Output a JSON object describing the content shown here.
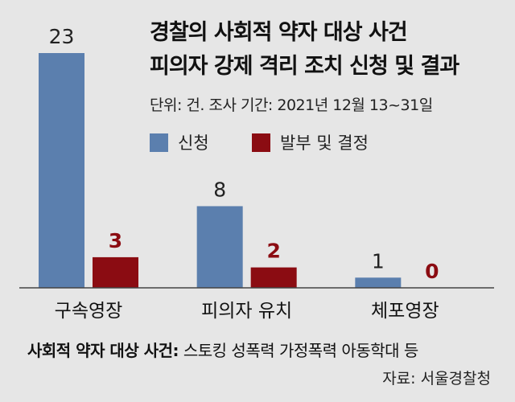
{
  "chart_data": {
    "type": "bar",
    "title": "경찰의 사회적 약자 대상 사건",
    "subtitle": "피의자 강제 격리 조치 신청 및 결과",
    "note": "단위: 건.  조사 기간: 2021년 12월 13~31일",
    "categories": [
      "구속영장",
      "피의자 유치",
      "체포영장"
    ],
    "series": [
      {
        "name": "신청",
        "values": [
          23,
          8,
          1
        ],
        "color": "#5b7fae"
      },
      {
        "name": "발부 및 결정",
        "values": [
          3,
          2,
          0
        ],
        "color": "#8b0c12"
      }
    ],
    "ylim": [
      0,
      23
    ],
    "grid": false,
    "legend_position": "top-right"
  },
  "footnote": {
    "label": "사회적 약자 대상 사건:",
    "text": " 스토킹 성폭력 가정폭력 아동학대 등"
  },
  "source": "자료: 서울경찰청"
}
